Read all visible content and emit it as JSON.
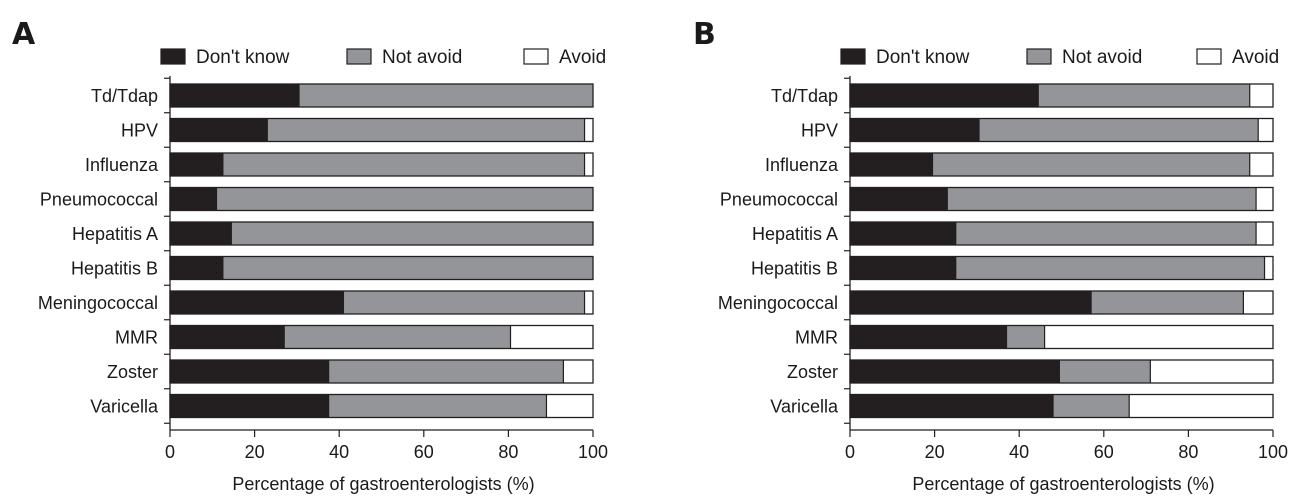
{
  "chart_data": [
    {
      "type": "bar",
      "orientation": "horizontal",
      "stacked": true,
      "panel_label": "A",
      "categories": [
        "Td/Tdap",
        "HPV",
        "Influenza",
        "Pneumococcal",
        "Hepatitis A",
        "Hepatitis B",
        "Meningococcal",
        "MMR",
        "Zoster",
        "Varicella"
      ],
      "series": [
        {
          "name": "Don't know",
          "color": "#231f20",
          "values": [
            30.5,
            23,
            12.5,
            11,
            14.5,
            12.5,
            41,
            27,
            37.5,
            37.5
          ]
        },
        {
          "name": "Not avoid",
          "color": "#939598",
          "values": [
            69.5,
            75,
            85.5,
            89,
            85.5,
            87.5,
            57,
            53.5,
            55.5,
            51.5
          ]
        },
        {
          "name": "Avoid",
          "color": "#ffffff",
          "values": [
            0,
            2,
            2,
            0,
            0,
            0,
            2,
            19.5,
            7,
            11
          ]
        }
      ],
      "xlabel": "Percentage of gastroenterologists (%)",
      "ylabel": "",
      "xlim": [
        0,
        100
      ],
      "xticks": [
        "0",
        "20",
        "40",
        "60",
        "80",
        "100"
      ],
      "legend_position": "top"
    },
    {
      "type": "bar",
      "orientation": "horizontal",
      "stacked": true,
      "panel_label": "B",
      "categories": [
        "Td/Tdap",
        "HPV",
        "Influenza",
        "Pneumococcal",
        "Hepatitis A",
        "Hepatitis B",
        "Meningococcal",
        "MMR",
        "Zoster",
        "Varicella"
      ],
      "series": [
        {
          "name": "Don't know",
          "color": "#231f20",
          "values": [
            44.5,
            30.5,
            19.5,
            23,
            25,
            25,
            57,
            37,
            49.5,
            48
          ]
        },
        {
          "name": "Not avoid",
          "color": "#939598",
          "values": [
            50,
            66,
            75,
            73,
            71,
            73,
            36,
            9,
            21.5,
            18
          ]
        },
        {
          "name": "Avoid",
          "color": "#ffffff",
          "values": [
            5.5,
            3.5,
            5.5,
            4,
            4,
            2,
            7,
            54,
            29,
            34
          ]
        }
      ],
      "xlabel": "Percentage of gastroenterologists (%)",
      "ylabel": "",
      "xlim": [
        0,
        100
      ],
      "xticks": [
        "0",
        "20",
        "40",
        "60",
        "80",
        "100"
      ],
      "legend_position": "top"
    }
  ]
}
